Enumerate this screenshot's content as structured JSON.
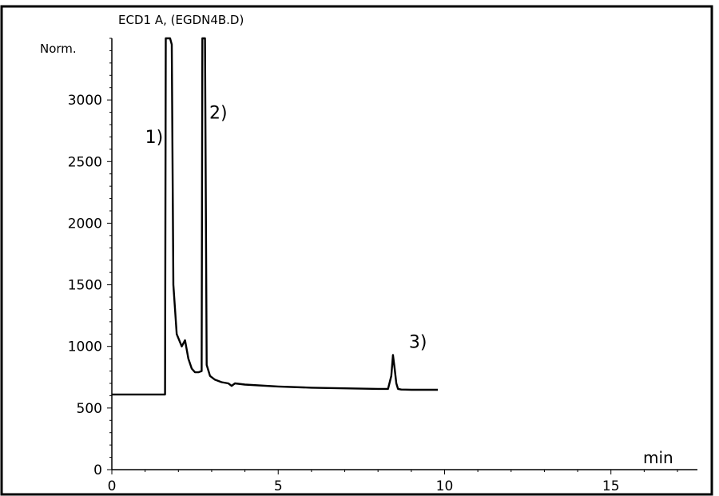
{
  "chart_data": {
    "type": "line",
    "title": "ECD1 A, (EGDN4B.D)",
    "ylabel": "Norm.",
    "xlabel": "min",
    "xlim": [
      0,
      17.6
    ],
    "ylim": [
      0,
      3500
    ],
    "x_ticks": [
      0,
      5,
      10,
      15
    ],
    "y_ticks": [
      0,
      500,
      1000,
      1500,
      2000,
      2500,
      3000
    ],
    "grid": false,
    "series": [
      {
        "x": [
          0.0,
          1.6,
          1.62,
          1.67,
          1.75,
          1.8,
          1.85,
          1.95,
          2.1,
          2.2,
          2.3,
          2.4,
          2.5,
          2.6,
          2.7,
          2.72,
          2.75,
          2.8,
          2.85,
          2.95,
          3.1,
          3.3,
          3.5,
          3.6,
          3.7,
          4.0,
          5.0,
          6.0,
          7.0,
          8.0,
          8.3,
          8.4,
          8.45,
          8.5,
          8.55,
          8.6,
          8.7,
          9.0,
          9.8
        ],
        "y": [
          610,
          610,
          3500,
          3500,
          3500,
          3450,
          1500,
          1100,
          1000,
          1050,
          900,
          820,
          790,
          790,
          800,
          3500,
          3500,
          3500,
          850,
          760,
          730,
          710,
          700,
          680,
          700,
          690,
          675,
          665,
          660,
          655,
          655,
          760,
          930,
          820,
          700,
          655,
          650,
          648,
          648
        ]
      }
    ],
    "annotations": [
      {
        "text": "1)",
        "x": 1.27,
        "y": 2650
      },
      {
        "text": "2)",
        "x": 3.2,
        "y": 2850
      },
      {
        "text": "3)",
        "x": 9.2,
        "y": 990
      }
    ]
  }
}
